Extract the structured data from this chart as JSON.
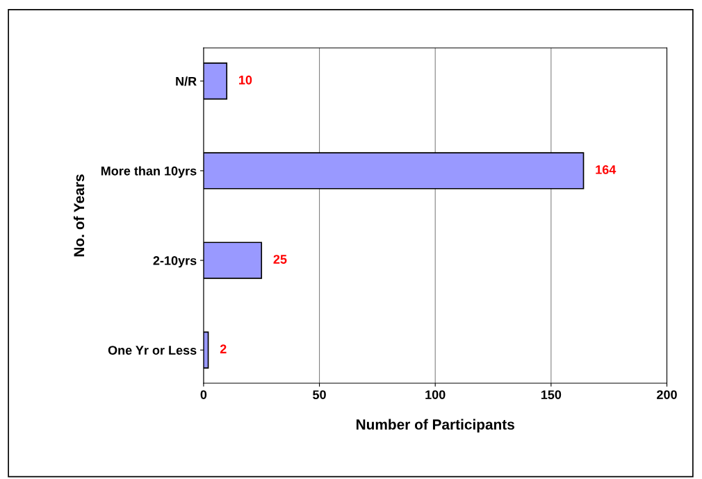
{
  "chart_data": {
    "type": "bar",
    "orientation": "horizontal",
    "xlabel": "Number of Participants",
    "ylabel": "No. of Years",
    "categories": [
      "N/R",
      "More than 10yrs",
      "2-10yrs",
      "One Yr or Less"
    ],
    "values": [
      10,
      164,
      25,
      2
    ],
    "color": "#9999ff",
    "data_labels": true,
    "xlim": [
      0,
      200
    ],
    "xticks": [
      0,
      50,
      100,
      150,
      200
    ],
    "grid": "x"
  }
}
